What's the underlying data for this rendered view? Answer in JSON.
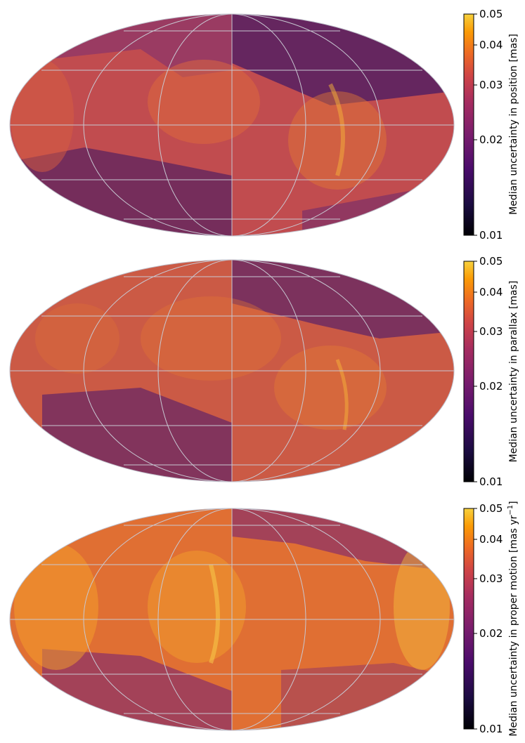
{
  "chart_data": [
    {
      "type": "heatmap",
      "projection": "mollweide",
      "grid": true,
      "colormap": "inferno",
      "colorbar": {
        "label": "Median uncertainty in position [mas]",
        "scale": "log",
        "range": [
          0.01,
          0.05
        ],
        "ticks": [
          0.01,
          0.02,
          0.03,
          0.04,
          0.05
        ],
        "tick_labels": [
          "0.01",
          "0.02",
          "0.03",
          "0.04",
          "0.05"
        ],
        "position": "right"
      },
      "approx_typical_value": 0.025
    },
    {
      "type": "heatmap",
      "projection": "mollweide",
      "grid": true,
      "colormap": "inferno",
      "colorbar": {
        "label": "Median uncertainty in parallax [mas]",
        "scale": "log",
        "range": [
          0.01,
          0.05
        ],
        "ticks": [
          0.01,
          0.02,
          0.03,
          0.04,
          0.05
        ],
        "tick_labels": [
          "0.01",
          "0.02",
          "0.03",
          "0.04",
          "0.05"
        ],
        "position": "right"
      },
      "approx_typical_value": 0.027
    },
    {
      "type": "heatmap",
      "projection": "mollweide",
      "grid": true,
      "colormap": "inferno",
      "colorbar": {
        "label_main": "Median uncertainty in proper motion [mas yr",
        "label_sup": "−1",
        "label_end": "]",
        "scale": "log",
        "range": [
          0.01,
          0.05
        ],
        "ticks": [
          0.01,
          0.02,
          0.03,
          0.04,
          0.05
        ],
        "tick_labels": [
          "0.01",
          "0.02",
          "0.03",
          "0.04",
          "0.05"
        ],
        "position": "right"
      },
      "approx_typical_value": 0.031
    }
  ],
  "colors": {
    "inferno_stops": [
      "#000004",
      "#1b0c41",
      "#4a0c6b",
      "#781c6d",
      "#a52c60",
      "#cf4446",
      "#ed6925",
      "#fb9b06",
      "#f7d13d",
      "#fcffa4"
    ],
    "grid_line": "#c8c8d2",
    "outline": "#bdbdc8"
  }
}
